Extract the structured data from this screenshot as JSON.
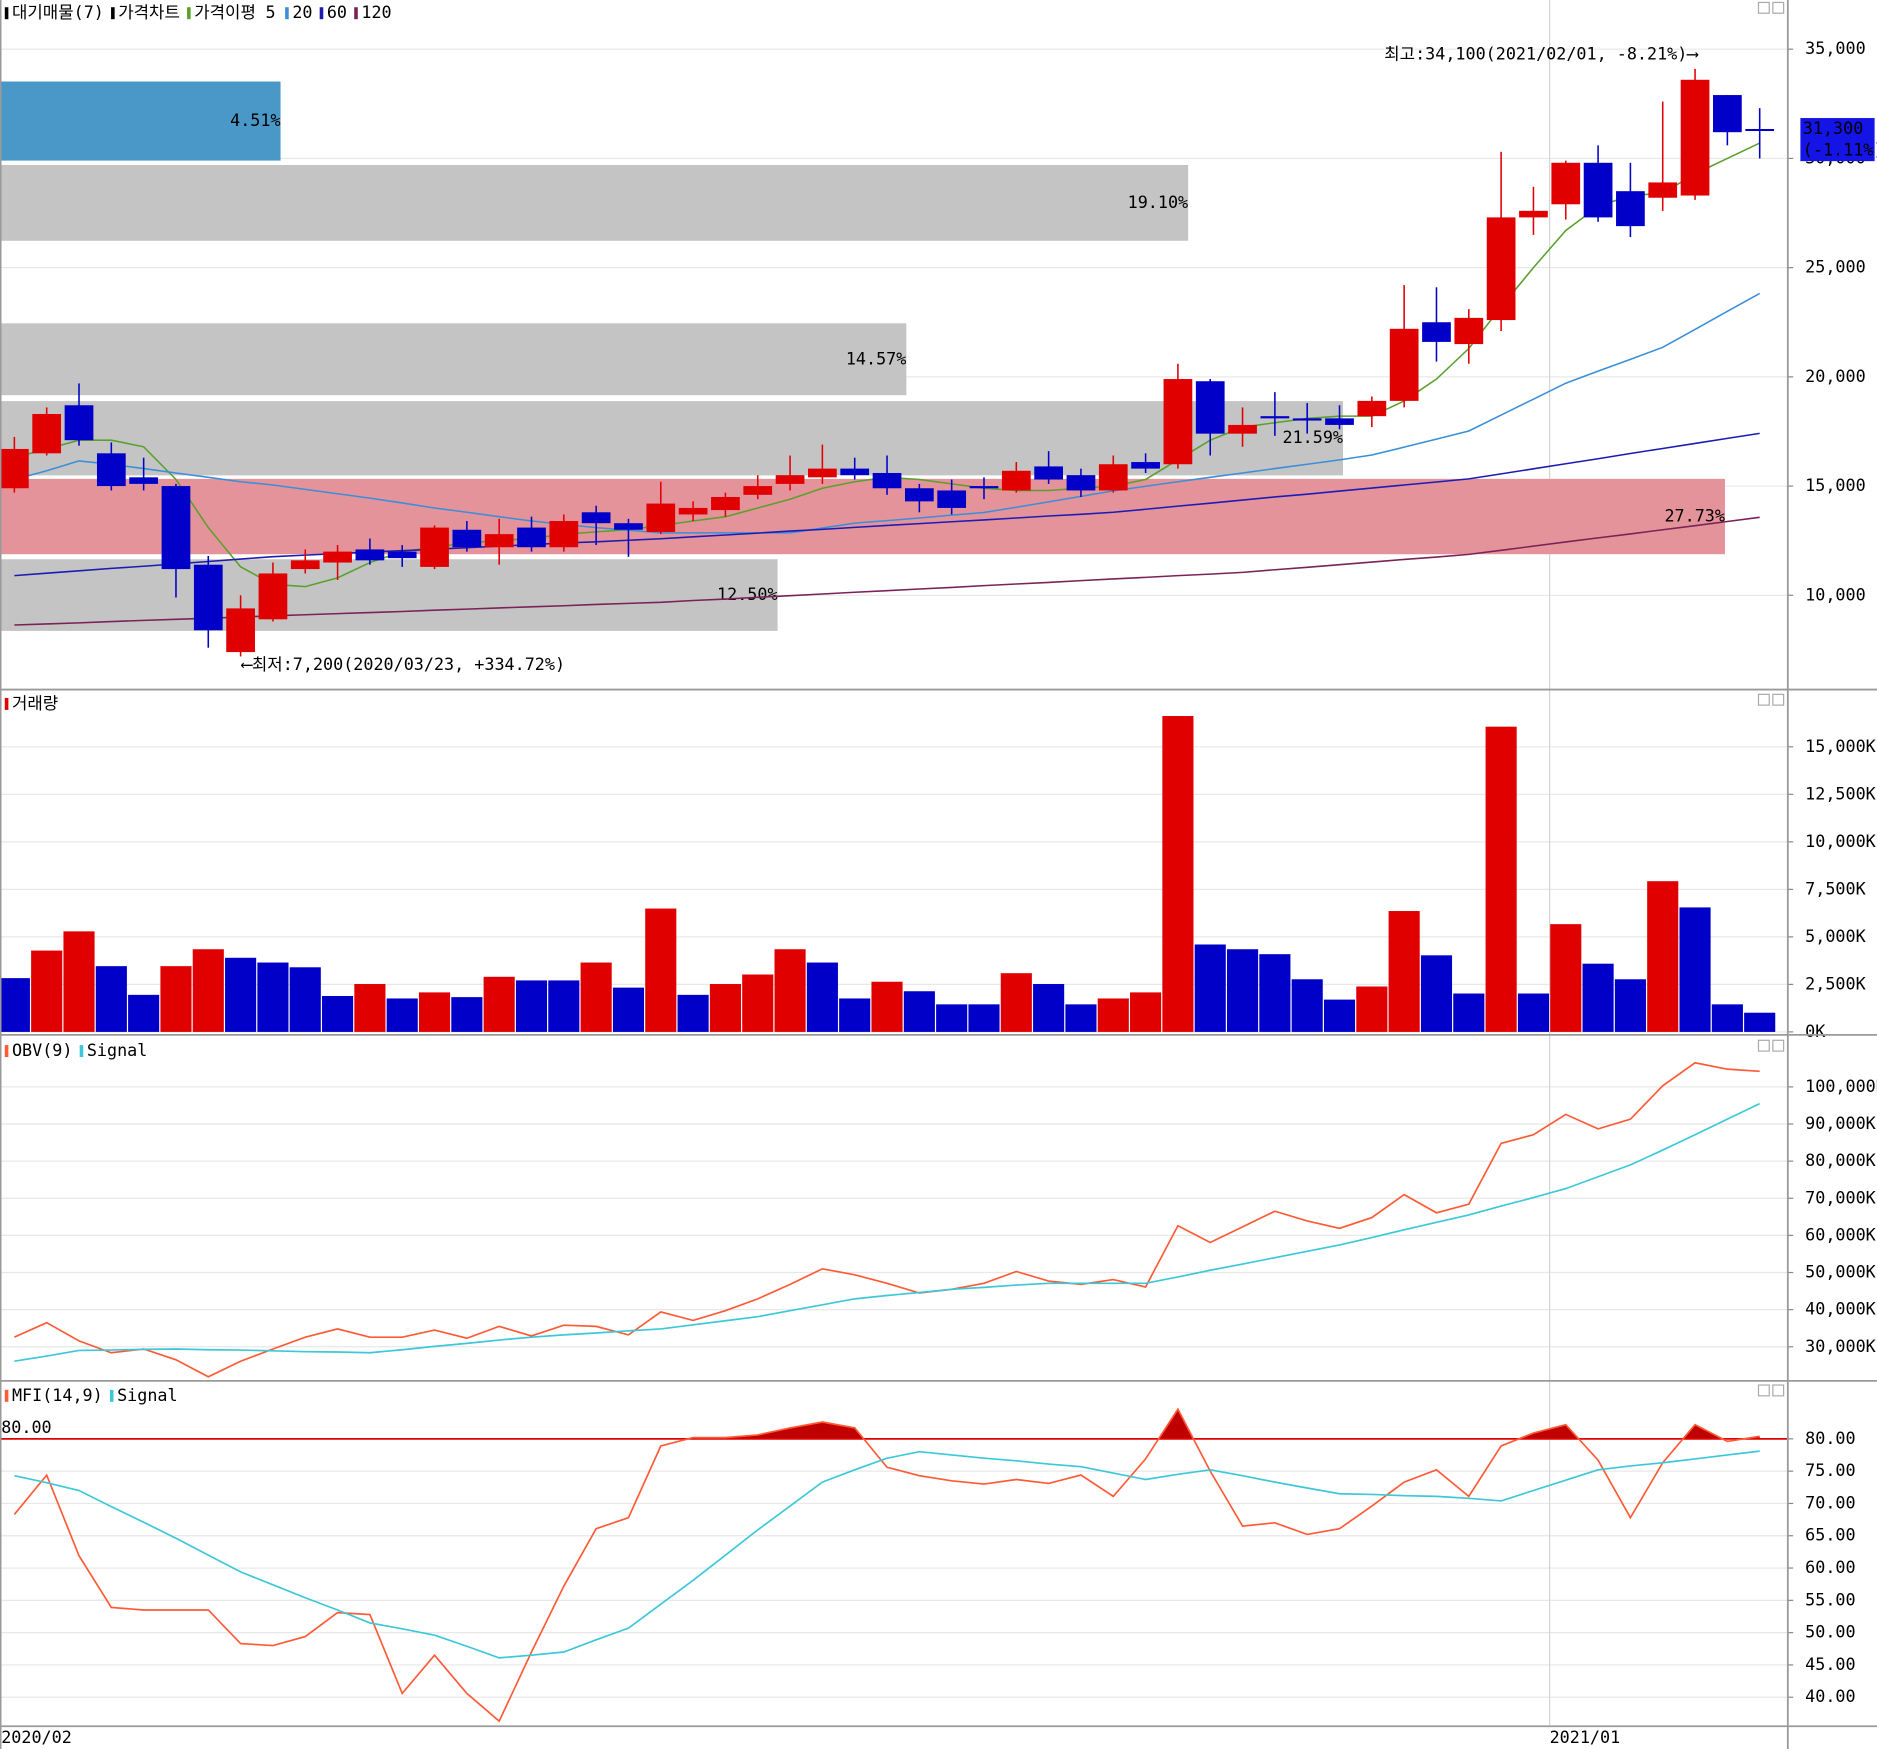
{
  "chart_data": [
    {
      "type": "candlestick",
      "name": "가격차트",
      "categories": [
        "2020/02",
        null,
        null,
        null,
        null,
        null,
        null,
        null,
        null,
        null,
        null,
        null,
        null,
        null,
        null,
        null,
        null,
        null,
        null,
        null,
        null,
        null,
        null,
        null,
        null,
        null,
        null,
        null,
        null,
        null,
        null,
        null,
        null,
        null,
        null,
        null,
        null,
        null,
        null,
        null,
        null,
        null,
        null,
        null,
        null,
        null,
        null,
        null,
        "2021/01",
        null,
        null,
        null,
        null,
        null,
        null
      ],
      "open": [
        14900,
        16500,
        18700,
        16500,
        15400,
        15000,
        11400,
        7400,
        8900,
        11200,
        11500,
        12100,
        12000,
        11300,
        13000,
        12200,
        13100,
        12200,
        13800,
        13300,
        12900,
        13700,
        13900,
        14600,
        15100,
        15400,
        15800,
        15600,
        14900,
        14800,
        15000,
        14800,
        15900,
        15500,
        14800,
        16100,
        16000,
        19800,
        17400,
        18200,
        18100,
        18100,
        18200,
        18900,
        22500,
        21500,
        22600,
        27300,
        27900,
        29800,
        28500,
        28200,
        28300,
        32900,
        31300
      ],
      "high": [
        17250,
        18600,
        19700,
        17000,
        16300,
        15100,
        11800,
        10000,
        11500,
        12100,
        12300,
        12600,
        12300,
        13200,
        13400,
        13500,
        13600,
        13700,
        14100,
        13500,
        15200,
        14300,
        14700,
        15500,
        16400,
        16900,
        16300,
        16400,
        15100,
        15300,
        15400,
        16100,
        16600,
        15800,
        16400,
        16500,
        20600,
        19900,
        18600,
        19300,
        18800,
        18700,
        19100,
        24200,
        24100,
        23100,
        30300,
        28700,
        29900,
        30600,
        29800,
        32600,
        34100,
        32900,
        32300
      ],
      "low": [
        14700,
        16400,
        16850,
        14800,
        14800,
        9900,
        7600,
        7200,
        8800,
        11000,
        10700,
        11400,
        11300,
        11200,
        12000,
        11400,
        12000,
        12000,
        12300,
        11760,
        12800,
        13400,
        13600,
        14400,
        14800,
        15100,
        15300,
        14600,
        13800,
        13700,
        14400,
        14700,
        15100,
        14500,
        14700,
        15600,
        15800,
        16400,
        16800,
        17300,
        17400,
        17600,
        17700,
        18600,
        20700,
        20600,
        22100,
        26500,
        27200,
        27100,
        26400,
        27600,
        28100,
        30600,
        30000
      ],
      "close": [
        16700,
        18300,
        17100,
        15000,
        15100,
        11200,
        8400,
        9400,
        11000,
        11600,
        12000,
        11600,
        11700,
        13100,
        12200,
        12800,
        12200,
        13400,
        13300,
        13000,
        14200,
        14000,
        14500,
        15000,
        15500,
        15800,
        15500,
        14900,
        14300,
        14000,
        14900,
        15700,
        15300,
        14800,
        16000,
        15800,
        19900,
        17400,
        17800,
        18100,
        18000,
        17800,
        18900,
        22200,
        21600,
        22700,
        27300,
        27600,
        29800,
        27300,
        26900,
        28900,
        33600,
        31200,
        31300
      ],
      "up_color": "#e00000",
      "down_color": "#0000c8",
      "ma_label": "가격이평",
      "ma": [
        {
          "name": "5",
          "color": "#5aa02c",
          "values": [
            16300,
            16700,
            17100,
            17100,
            16800,
            15300,
            13100,
            11300,
            10500,
            10400,
            10800,
            11500,
            12000,
            12200,
            12400,
            12500,
            12600,
            12800,
            12900,
            13000,
            13200,
            13400,
            13600,
            14000,
            14400,
            14900,
            15200,
            15400,
            15300,
            15100,
            14900,
            14800,
            14800,
            14900,
            15000,
            15300,
            16200,
            17100,
            17700,
            17900,
            18100,
            18200,
            18200,
            18900,
            19900,
            21300,
            23200,
            25000,
            26700,
            27800,
            28300,
            28400,
            29300,
            30000,
            30700
          ]
        },
        {
          "name": "20",
          "color": "#3a8fd8",
          "values": [
            15300,
            15700,
            16150,
            16000,
            15800,
            15600,
            15400,
            15200,
            15050,
            14850,
            14650,
            14450,
            14230,
            14000,
            13800,
            13600,
            13400,
            13250,
            13100,
            12980,
            12860,
            12860,
            12860,
            12860,
            12860,
            13080,
            13300,
            13420,
            13540,
            13670,
            13790,
            14030,
            14280,
            14530,
            14780,
            14990,
            15200,
            15400,
            15600,
            15800,
            16000,
            16200,
            16420,
            16780,
            17150,
            17520,
            18250,
            18980,
            19710,
            20260,
            20800,
            21350,
            22170,
            23000,
            23820
          ]
        },
        {
          "name": "60",
          "color": "#1c1cb4",
          "values": [
            10900,
            11010,
            11120,
            11230,
            11330,
            11440,
            11550,
            11660,
            11770,
            11840,
            11910,
            11980,
            12040,
            12110,
            12180,
            12250,
            12320,
            12390,
            12450,
            12520,
            12590,
            12680,
            12760,
            12850,
            12940,
            13020,
            13110,
            13200,
            13280,
            13370,
            13450,
            13540,
            13630,
            13710,
            13800,
            13940,
            14080,
            14220,
            14360,
            14500,
            14630,
            14770,
            14910,
            15050,
            15190,
            15330,
            15560,
            15790,
            16020,
            16250,
            16490,
            16720,
            16950,
            17180,
            17410
          ]
        },
        {
          "name": "120",
          "color": "#7a2357",
          "values": [
            8640,
            8690,
            8740,
            8800,
            8850,
            8900,
            8950,
            9000,
            9060,
            9110,
            9160,
            9210,
            9260,
            9320,
            9370,
            9420,
            9470,
            9520,
            9580,
            9630,
            9680,
            9760,
            9830,
            9910,
            9980,
            10060,
            10140,
            10210,
            10290,
            10360,
            10440,
            10520,
            10590,
            10670,
            10750,
            10820,
            10900,
            10970,
            11050,
            11170,
            11280,
            11400,
            11520,
            11640,
            11750,
            11870,
            12060,
            12250,
            12440,
            12630,
            12810,
            13000,
            13190,
            13380,
            13570
          ]
        }
      ],
      "profile": {
        "name": "대기매물(7)",
        "lows": [
          29900,
          26230,
          19160,
          15490,
          11880,
          8370
        ],
        "highs": [
          33520,
          29700,
          22450,
          18890,
          15330,
          11650
        ],
        "values": [
          4.51,
          19.1,
          14.57,
          21.59,
          27.73,
          12.5
        ],
        "value_labels": [
          "4.51%",
          "19.10%",
          "14.57%",
          "21.59%",
          "27.73%",
          "12.50%"
        ],
        "colors": [
          "#4a98c8",
          "#c4c4c4",
          "#c4c4c4",
          "#c4c4c4",
          "#e5939a",
          "#c4c4c4"
        ]
      },
      "high_label": "최고:34,100(2021/02/01, -8.21%)⟶",
      "low_label": "⟵최저:7,200(2020/03/23, +334.72%)",
      "last": {
        "value": 31300,
        "label": "31,300",
        "change": -1.11,
        "change_label": "(-1.11%)",
        "color": "#1414e6"
      },
      "ylim": [
        5740,
        37250
      ],
      "yticks": [
        {
          "value": 10000,
          "label": "10,000"
        },
        {
          "value": 15000,
          "label": "15,000"
        },
        {
          "value": 20000,
          "label": "20,000"
        },
        {
          "value": 25000,
          "label": "25,000"
        },
        {
          "value": 30000,
          "label": "30,000"
        },
        {
          "value": 35000,
          "label": "35,000"
        }
      ],
      "grid": true
    },
    {
      "type": "bar",
      "name": "거래량",
      "color": "#e00000",
      "values": [
        2830,
        4280,
        5290,
        3460,
        1950,
        3460,
        4350,
        3900,
        3650,
        3400,
        1890,
        2520,
        1760,
        2080,
        1830,
        2900,
        2710,
        2710,
        3650,
        2330,
        6490,
        1950,
        2520,
        3020,
        4350,
        3650,
        1760,
        2640,
        2140,
        1450,
        1450,
        3090,
        2520,
        1450,
        1760,
        2080,
        16620,
        4600,
        4350,
        4090,
        2770,
        1700,
        2390,
        6360,
        4030,
        2020,
        16060,
        2020,
        5670,
        3590,
        2770,
        7930,
        6550,
        1450,
        1010
      ],
      "colors": [
        "#0000c8",
        "#e00000",
        "#e00000",
        "#0000c8",
        "#0000c8",
        "#e00000",
        "#e00000",
        "#0000c8",
        "#0000c8",
        "#0000c8",
        "#0000c8",
        "#e00000",
        "#0000c8",
        "#e00000",
        "#0000c8",
        "#e00000",
        "#0000c8",
        "#0000c8",
        "#e00000",
        "#0000c8",
        "#e00000",
        "#0000c8",
        "#e00000",
        "#e00000",
        "#e00000",
        "#0000c8",
        "#0000c8",
        "#e00000",
        "#0000c8",
        "#0000c8",
        "#0000c8",
        "#e00000",
        "#0000c8",
        "#0000c8",
        "#e00000",
        "#e00000",
        "#e00000",
        "#0000c8",
        "#0000c8",
        "#0000c8",
        "#0000c8",
        "#0000c8",
        "#e00000",
        "#e00000",
        "#0000c8",
        "#0000c8",
        "#e00000",
        "#0000c8",
        "#e00000",
        "#0000c8",
        "#0000c8",
        "#e00000",
        "#0000c8",
        "#0000c8",
        "#0000c8"
      ],
      "ylim": [
        0,
        17950
      ],
      "yticks": [
        {
          "value": 0,
          "label": "0K"
        },
        {
          "value": 2500,
          "label": "2,500K"
        },
        {
          "value": 5000,
          "label": "5,000K"
        },
        {
          "value": 7500,
          "label": "7,500K"
        },
        {
          "value": 10000,
          "label": "10,000K"
        },
        {
          "value": 12500,
          "label": "12,500K"
        },
        {
          "value": 15000,
          "label": "15,000K"
        }
      ],
      "grid": true
    },
    {
      "type": "line",
      "series": [
        {
          "name": "OBV(9)",
          "color": "#ff5a36",
          "values": [
            32600,
            36500,
            31600,
            28400,
            29400,
            26500,
            21900,
            26100,
            29400,
            32600,
            34800,
            32600,
            32600,
            34500,
            32300,
            35500,
            32900,
            35800,
            35500,
            33200,
            39400,
            37100,
            39700,
            42900,
            46800,
            51000,
            49400,
            47100,
            44500,
            45500,
            47100,
            50300,
            47700,
            46800,
            48100,
            46100,
            62600,
            58100,
            62300,
            66500,
            63900,
            61900,
            64800,
            71000,
            66100,
            68400,
            84800,
            87100,
            92600,
            88700,
            91300,
            100300,
            106500,
            104800,
            104200
          ]
        },
        {
          "name": "Signal",
          "color": "#3cc8d8",
          "values": [
            26100,
            27500,
            29000,
            29100,
            29300,
            29400,
            29200,
            29100,
            28900,
            28700,
            28600,
            28400,
            29200,
            30100,
            30900,
            31800,
            32600,
            33200,
            33700,
            34300,
            34800,
            35900,
            37000,
            38100,
            39700,
            41300,
            42900,
            43800,
            44600,
            45500,
            46000,
            46600,
            47100,
            47100,
            47100,
            47100,
            48800,
            50600,
            52300,
            54000,
            55700,
            57400,
            59400,
            61500,
            63500,
            65500,
            67900,
            70200,
            72600,
            75800,
            79000,
            83000,
            87100,
            91300,
            95500
          ]
        }
      ],
      "ylim": [
        21300,
        113200
      ],
      "yticks": [
        {
          "value": 30000,
          "label": "30,000K"
        },
        {
          "value": 40000,
          "label": "40,000K"
        },
        {
          "value": 50000,
          "label": "50,000K"
        },
        {
          "value": 60000,
          "label": "60,000K"
        },
        {
          "value": 70000,
          "label": "70,000K"
        },
        {
          "value": 80000,
          "label": "80,000K"
        },
        {
          "value": 90000,
          "label": "90,000K"
        },
        {
          "value": 100000,
          "label": "100,000K"
        }
      ],
      "grid": true
    },
    {
      "type": "line",
      "series": [
        {
          "name": "MFI(14,9)",
          "color": "#ff5a36",
          "values": [
            68.3,
            74.4,
            61.9,
            53.9,
            53.5,
            53.5,
            53.5,
            48.3,
            48.0,
            49.4,
            53.1,
            52.8,
            40.6,
            46.5,
            40.6,
            36.3,
            47.0,
            57.2,
            66.1,
            67.8,
            78.9,
            80.2,
            80.2,
            80.6,
            81.7,
            82.6,
            81.7,
            75.6,
            74.3,
            73.5,
            73.0,
            73.7,
            73.1,
            74.4,
            71.1,
            76.9,
            84.6,
            75.0,
            66.5,
            67.0,
            65.2,
            66.1,
            69.6,
            73.3,
            75.2,
            71.1,
            78.9,
            80.9,
            82.2,
            76.7,
            67.8,
            76.3,
            82.2,
            79.6,
            80.4
          ]
        },
        {
          "name": "Signal",
          "color": "#3cc8d8",
          "values": [
            74.3,
            73.2,
            72.0,
            69.5,
            67.1,
            64.6,
            62.0,
            59.4,
            57.4,
            55.4,
            53.5,
            51.5,
            50.6,
            49.6,
            47.9,
            46.1,
            46.5,
            47.0,
            48.9,
            50.7,
            54.4,
            58.1,
            62.0,
            65.9,
            69.6,
            73.3,
            75.2,
            77.0,
            78.0,
            77.5,
            77.0,
            76.6,
            76.1,
            75.7,
            74.7,
            73.7,
            74.5,
            75.2,
            74.3,
            73.3,
            72.4,
            71.5,
            71.4,
            71.2,
            71.1,
            70.8,
            70.4,
            72.0,
            73.6,
            75.2,
            75.8,
            76.3,
            76.9,
            77.5,
            78.1
          ]
        }
      ],
      "level": 80,
      "level_label": "80.00",
      "level_color": "#e00000",
      "fill_color": "#c00000",
      "ylim": [
        35.7,
        88.7
      ],
      "yticks": [
        {
          "value": 40,
          "label": "40.00"
        },
        {
          "value": 45,
          "label": "45.00"
        },
        {
          "value": 50,
          "label": "50.00"
        },
        {
          "value": 55,
          "label": "55.00"
        },
        {
          "value": 60,
          "label": "60.00"
        },
        {
          "value": 65,
          "label": "65.00"
        },
        {
          "value": 70,
          "label": "70.00"
        },
        {
          "value": 75,
          "label": "75.00"
        },
        {
          "value": 80,
          "label": "80.00"
        }
      ],
      "grid": true
    }
  ]
}
